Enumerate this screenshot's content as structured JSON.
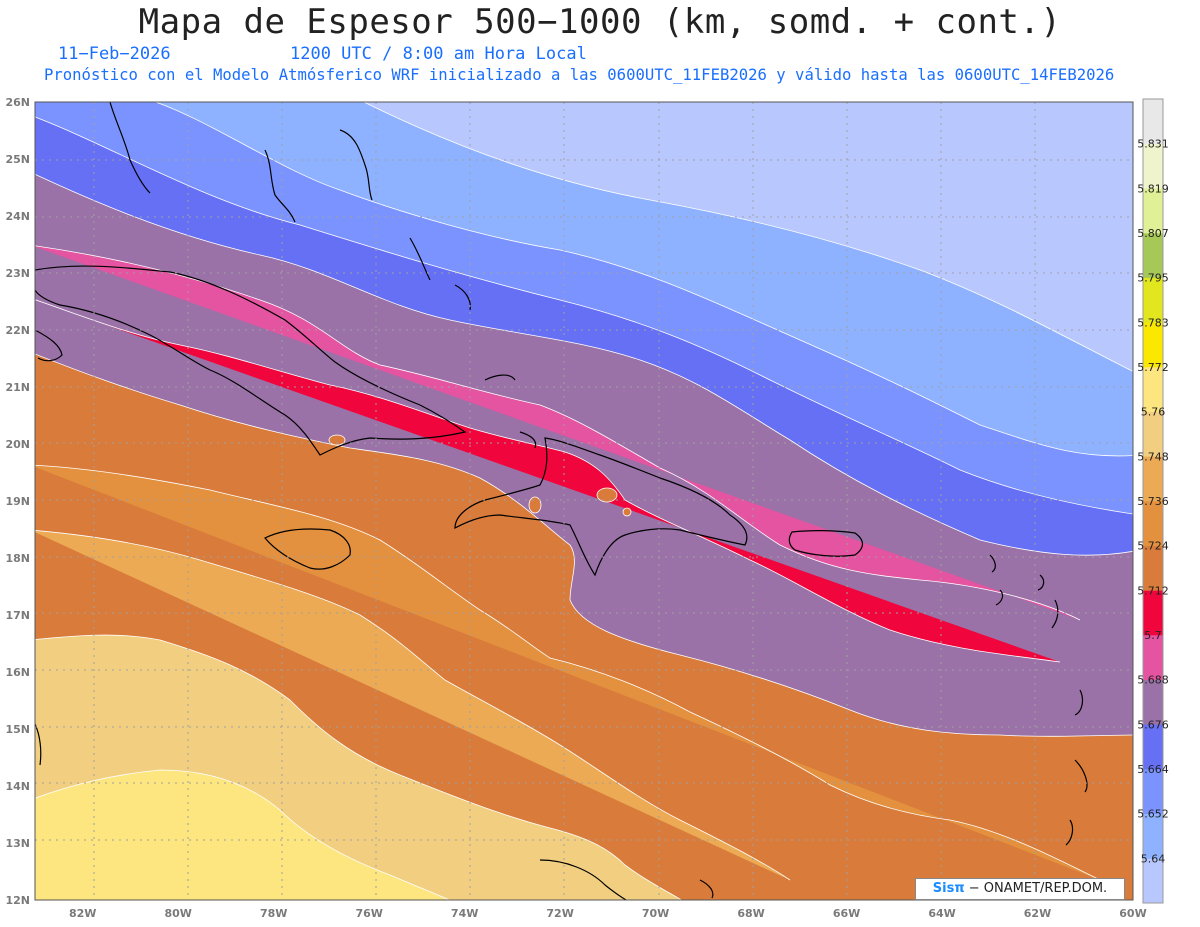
{
  "header": {
    "title": "Mapa de Espesor 500−1000 (km, somd. + cont.)",
    "date": "11−Feb−2026",
    "time": "1200 UTC / 8:00 am Hora Local",
    "forecast": "Pronóstico con el Modelo Atmósferico WRF inicializado a las 0600UTC_11FEB2026 y válido hasta las  0600UTC_14FEB2026"
  },
  "credit": {
    "brand": "Sisπ",
    "text": "− ONAMET/REP.DOM."
  },
  "map": {
    "lon_range": [
      -83,
      -60
    ],
    "lat_range": [
      12,
      26
    ],
    "lon_ticks": [
      "82W",
      "80W",
      "78W",
      "76W",
      "74W",
      "72W",
      "70W",
      "68W",
      "66W",
      "64W",
      "62W",
      "60W"
    ],
    "lat_ticks": [
      "12N",
      "13N",
      "14N",
      "15N",
      "16N",
      "17N",
      "18N",
      "19N",
      "20N",
      "21N",
      "22N",
      "23N",
      "24N",
      "25N",
      "26N"
    ],
    "grid": true
  },
  "colorbar": {
    "levels": [
      "5.64",
      "5.652",
      "5.664",
      "5.676",
      "5.688",
      "5.7",
      "5.712",
      "5.724",
      "5.736",
      "5.748",
      "5.76",
      "5.772",
      "5.783",
      "5.795",
      "5.807",
      "5.819",
      "5.831"
    ],
    "colors": [
      "#b8c8ff",
      "#8eb2ff",
      "#7b93ff",
      "#6670f5",
      "#9a72a8",
      "#e454a0",
      "#f0063c",
      "#d97b3a",
      "#e3913f",
      "#ecaa55",
      "#f2cf80",
      "#fde680",
      "#fae800",
      "#e2e61e",
      "#a6c856",
      "#e0f096",
      "#f0f4cc",
      "#e8e8e8"
    ]
  },
  "colors": {
    "coast": "#000000",
    "contour": "#ffffff",
    "grid": "#a0a0a0"
  }
}
